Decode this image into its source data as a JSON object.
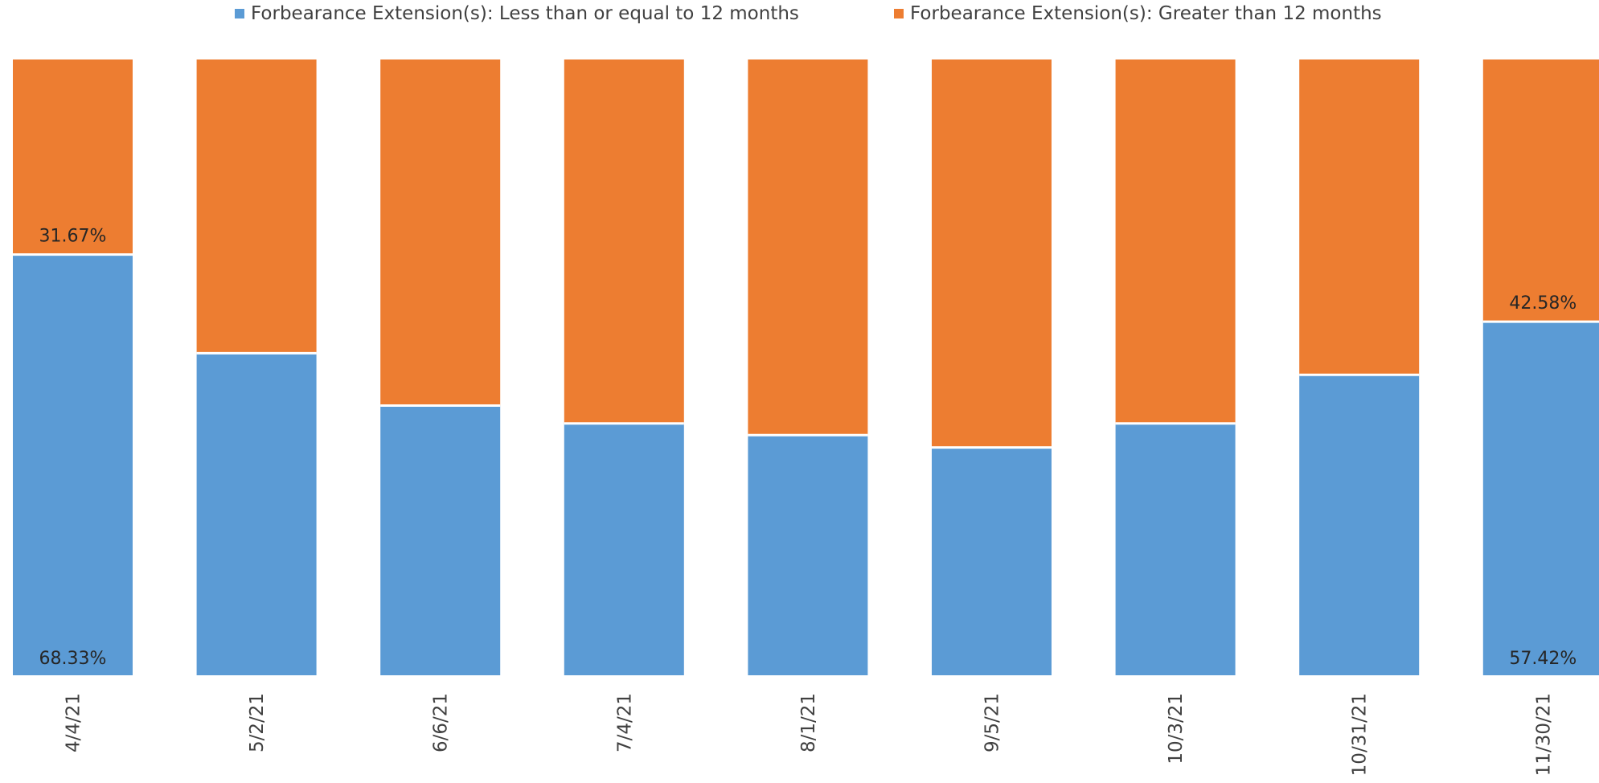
{
  "chart_data": {
    "type": "bar",
    "stacked": true,
    "percent_stacked": true,
    "categories": [
      "4/4/21",
      "5/2/21",
      "6/6/21",
      "7/4/21",
      "8/1/21",
      "9/5/21",
      "10/3/21",
      "10/31/21",
      "11/30/21"
    ],
    "series": [
      {
        "name": "Forbearance Extension(s): Less than or equal to 12 months",
        "color": "#5B9BD5",
        "values": [
          68.33,
          52.3,
          43.8,
          40.9,
          39.0,
          37.0,
          40.9,
          48.8,
          57.42
        ],
        "labels": [
          "68.33%",
          "",
          "",
          "",
          "",
          "",
          "",
          "",
          "57.42%"
        ]
      },
      {
        "name": "Forbearance Extension(s): Greater than 12 months",
        "color": "#ED7D31",
        "values": [
          31.67,
          47.7,
          56.2,
          59.1,
          61.0,
          63.0,
          59.1,
          51.2,
          42.58
        ],
        "labels": [
          "31.67%",
          "",
          "",
          "",
          "",
          "",
          "",
          "",
          "42.58%"
        ]
      }
    ],
    "ylim": [
      0,
      100
    ],
    "grid": false,
    "legend_position": "top"
  }
}
